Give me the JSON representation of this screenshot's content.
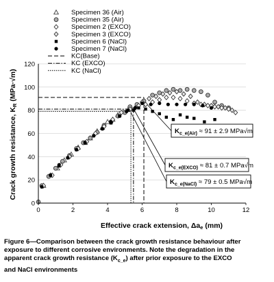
{
  "chart_data": {
    "type": "scatter",
    "xlabel_main": "Effective crack extension, ",
    "xlabel_delta": "Δa",
    "xlabel_sub": "e",
    "xlabel_unit": " (mm)",
    "ylabel_main": "Crack growth resistance, K",
    "ylabel_sub": "R",
    "ylabel_unit": " (MPa·√m)",
    "xlim": [
      0,
      12
    ],
    "ylim": [
      0,
      120
    ],
    "xticks": [
      "0",
      "2",
      "4",
      "6",
      "8",
      "10",
      "12"
    ],
    "yticks": [
      "0",
      "20",
      "40",
      "60",
      "80",
      "100",
      "120"
    ],
    "grid": "horizontal",
    "legend_position": "top",
    "series": [
      {
        "name": "Specimen 36 (Air)",
        "marker": "triangle",
        "points": [
          [
            0.3,
            15
          ],
          [
            0.7,
            24
          ],
          [
            1.1,
            30
          ],
          [
            1.5,
            37
          ],
          [
            1.9,
            42
          ],
          [
            2.3,
            48
          ],
          [
            2.7,
            52
          ],
          [
            3.0,
            56
          ],
          [
            3.4,
            62
          ],
          [
            3.7,
            65
          ],
          [
            4.0,
            70
          ],
          [
            4.3,
            72
          ],
          [
            4.6,
            76
          ],
          [
            4.9,
            79
          ],
          [
            5.2,
            81
          ],
          [
            5.4,
            81
          ]
        ]
      },
      {
        "name": "Specimen 35 (Air)",
        "marker": "circle-gray",
        "points": [
          [
            0.0,
            1
          ],
          [
            0.2,
            15
          ],
          [
            0.6,
            23
          ],
          [
            1.0,
            30
          ],
          [
            1.4,
            36
          ],
          [
            1.8,
            41
          ],
          [
            2.2,
            47
          ],
          [
            2.6,
            52
          ],
          [
            3.0,
            56
          ],
          [
            3.4,
            61
          ],
          [
            3.8,
            67
          ],
          [
            4.2,
            70
          ],
          [
            4.6,
            75
          ],
          [
            5.0,
            78
          ],
          [
            5.3,
            83
          ],
          [
            5.7,
            85
          ],
          [
            6.1,
            88
          ],
          [
            6.6,
            93
          ],
          [
            7.0,
            95
          ],
          [
            7.4,
            97
          ],
          [
            7.8,
            98
          ],
          [
            8.2,
            97
          ],
          [
            8.6,
            98
          ],
          [
            9.0,
            97
          ],
          [
            9.4,
            96
          ],
          [
            9.8,
            93
          ],
          [
            10.2,
            87
          ],
          [
            10.6,
            84
          ],
          [
            11.0,
            82
          ]
        ]
      },
      {
        "name": "Specimen 2 (EXCO)",
        "marker": "diamond",
        "points": [
          [
            0.3,
            15
          ],
          [
            0.8,
            24
          ],
          [
            1.3,
            33
          ],
          [
            1.8,
            40
          ],
          [
            2.3,
            47
          ],
          [
            2.8,
            53
          ],
          [
            3.3,
            60
          ],
          [
            3.8,
            66
          ],
          [
            4.3,
            72
          ],
          [
            4.8,
            78
          ],
          [
            5.3,
            81
          ],
          [
            5.8,
            84
          ],
          [
            6.2,
            85
          ],
          [
            6.6,
            87
          ],
          [
            7.0,
            89
          ],
          [
            7.4,
            91
          ],
          [
            7.8,
            91
          ],
          [
            8.2,
            90
          ],
          [
            8.6,
            88
          ],
          [
            9.0,
            86
          ],
          [
            9.4,
            85
          ],
          [
            9.8,
            84
          ],
          [
            10.2,
            83
          ],
          [
            10.6,
            82
          ],
          [
            11.0,
            81
          ],
          [
            11.4,
            78
          ]
        ]
      },
      {
        "name": "Specimen 3 (EXCO)",
        "marker": "diamond-open",
        "points": [
          [
            5.6,
            82
          ],
          [
            6.0,
            87
          ],
          [
            6.4,
            90
          ],
          [
            6.8,
            92
          ],
          [
            7.2,
            94
          ],
          [
            7.6,
            95
          ],
          [
            8.0,
            96
          ],
          [
            8.4,
            94
          ],
          [
            8.8,
            92
          ],
          [
            9.2,
            87
          ],
          [
            9.6,
            85
          ],
          [
            10.0,
            84
          ],
          [
            10.4,
            83
          ],
          [
            10.8,
            82
          ],
          [
            11.2,
            80
          ]
        ]
      },
      {
        "name": "Specimen 6 (NaCl)",
        "marker": "square",
        "points": [
          [
            0.2,
            14
          ],
          [
            0.7,
            24
          ],
          [
            1.2,
            32
          ],
          [
            1.7,
            39
          ],
          [
            2.2,
            46
          ],
          [
            2.7,
            52
          ],
          [
            3.2,
            58
          ],
          [
            3.7,
            64
          ],
          [
            4.2,
            69
          ],
          [
            4.7,
            75
          ],
          [
            5.2,
            80
          ],
          [
            5.5,
            80
          ],
          [
            5.8,
            82
          ],
          [
            6.2,
            81
          ],
          [
            6.6,
            79
          ],
          [
            7.0,
            77
          ],
          [
            7.4,
            74
          ],
          [
            7.8,
            72
          ],
          [
            8.2,
            76
          ],
          [
            8.6,
            74
          ],
          [
            9.0,
            73
          ],
          [
            9.6,
            70
          ],
          [
            10.2,
            72
          ]
        ]
      },
      {
        "name": "Specimen 7 (NaCl)",
        "marker": "circle",
        "points": [
          [
            0.2,
            14
          ],
          [
            0.7,
            24
          ],
          [
            1.2,
            33
          ],
          [
            1.7,
            39
          ],
          [
            2.2,
            46
          ],
          [
            2.7,
            52
          ],
          [
            3.2,
            58
          ],
          [
            3.7,
            64
          ],
          [
            4.2,
            70
          ],
          [
            4.7,
            75
          ],
          [
            5.1,
            79
          ],
          [
            5.6,
            82
          ],
          [
            6.0,
            86
          ],
          [
            6.5,
            85
          ],
          [
            7.0,
            86
          ],
          [
            7.5,
            85
          ],
          [
            8.0,
            85
          ],
          [
            8.5,
            85
          ],
          [
            9.0,
            85
          ],
          [
            9.5,
            84
          ],
          [
            10.0,
            82
          ]
        ]
      }
    ],
    "reference_lines": [
      {
        "name": "KC(Base)",
        "style": "dash",
        "y": 91,
        "x": 6.1
      },
      {
        "name": "KC (EXCO)",
        "style": "dashdot",
        "y": 81,
        "x": 5.5
      },
      {
        "name": "KC (NaCl)",
        "style": "dot",
        "y": 79,
        "x": 5.35
      }
    ],
    "annotations": [
      {
        "k": "K",
        "sub": "c_e(Air)",
        "text": " ≈ 91 ± 2.9 MPa√m"
      },
      {
        "k": "K",
        "sub": "c_e(EXCO)",
        "text": " ≈ 81 ± 0.7 MPa√m"
      },
      {
        "k": "K",
        "sub": "c_e(NaCl)",
        "text": " ≈ 79 ± 0.5 MPa√m"
      }
    ]
  },
  "caption": {
    "line1": "Figure 6—Comparison between the crack growth resistance behaviour after",
    "line2": "exposure to different corrosive environments. Note the degradation in the",
    "line3_pre": "apparent crack growth resistance (K",
    "line3_sub": "c_e",
    "line3_post": ") after prior exposure to the EXCO",
    "line4": "and NaCl environments"
  }
}
